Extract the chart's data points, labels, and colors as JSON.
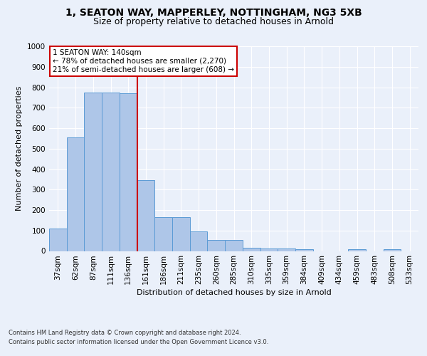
{
  "title1": "1, SEATON WAY, MAPPERLEY, NOTTINGHAM, NG3 5XB",
  "title2": "Size of property relative to detached houses in Arnold",
  "xlabel": "Distribution of detached houses by size in Arnold",
  "ylabel": "Number of detached properties",
  "categories": [
    "37sqm",
    "62sqm",
    "87sqm",
    "111sqm",
    "136sqm",
    "161sqm",
    "186sqm",
    "211sqm",
    "235sqm",
    "260sqm",
    "285sqm",
    "310sqm",
    "335sqm",
    "359sqm",
    "384sqm",
    "409sqm",
    "434sqm",
    "459sqm",
    "483sqm",
    "508sqm",
    "533sqm"
  ],
  "values": [
    110,
    555,
    775,
    775,
    770,
    345,
    165,
    165,
    95,
    55,
    55,
    15,
    12,
    12,
    10,
    0,
    0,
    10,
    0,
    10,
    0
  ],
  "bar_color": "#aec6e8",
  "bar_edge_color": "#5b9bd5",
  "annotation_text": "1 SEATON WAY: 140sqm\n← 78% of detached houses are smaller (2,270)\n21% of semi-detached houses are larger (608) →",
  "annotation_box_color": "#ffffff",
  "annotation_box_edge": "#cc0000",
  "red_line_color": "#cc0000",
  "ylim": [
    0,
    1000
  ],
  "yticks": [
    0,
    100,
    200,
    300,
    400,
    500,
    600,
    700,
    800,
    900,
    1000
  ],
  "footer1": "Contains HM Land Registry data © Crown copyright and database right 2024.",
  "footer2": "Contains public sector information licensed under the Open Government Licence v3.0.",
  "bg_color": "#eaf0fa",
  "plot_bg_color": "#eaf0fa",
  "title_fontsize": 10,
  "subtitle_fontsize": 9,
  "axis_label_fontsize": 8,
  "tick_fontsize": 7.5,
  "footer_fontsize": 6
}
